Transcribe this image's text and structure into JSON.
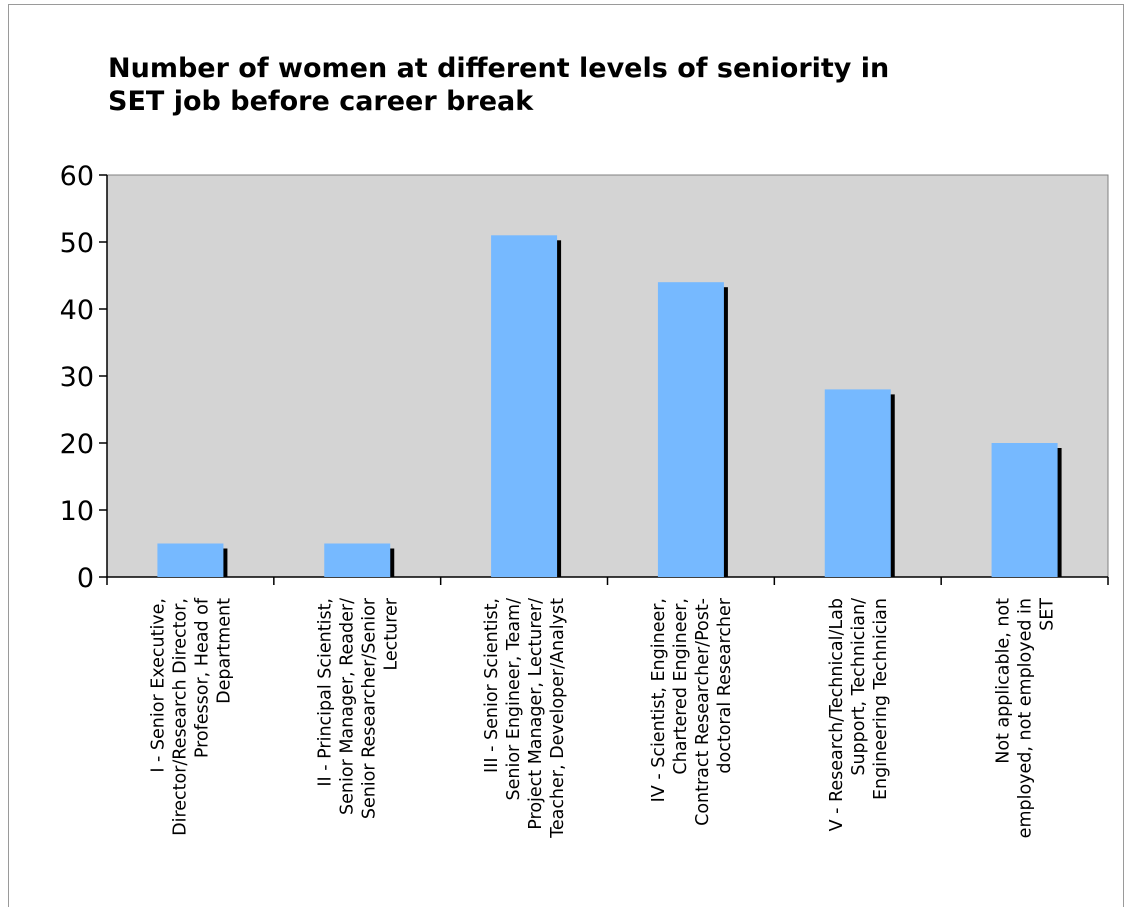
{
  "chart_data": {
    "type": "bar",
    "title": "Number of women at different levels of seniority in SET job before career break",
    "title_lines": [
      "Number of women at different levels of seniority in",
      "SET job before career break"
    ],
    "xlabel": "",
    "ylabel": "",
    "ylim": [
      0,
      60
    ],
    "yticks": [
      "0",
      "10",
      "20",
      "30",
      "40",
      "50",
      "60"
    ],
    "grid": false,
    "legend": "none",
    "categories": [
      "I - Senior Executive, Director/Research Director, Professor, Head of Department",
      "II - Principal Scientist, Senior Manager, Reader/ Senior Researcher/Senior Lecturer",
      "III - Senior Scientist, Senior Engineer, Team/ Project Manager, Lecturer/ Teacher, Developer/Analyst",
      "IV - Scientist, Engineer, Chartered Engineer, Contract Researcher/Post-doctoral Researcher",
      "V - Research/Technical/Lab Support, Technician/ Engineering Technician",
      "Not applicable, not employed, not employed in SET"
    ],
    "category_lines": [
      [
        "I - Senior Executive,",
        "Director/Research Director,",
        "Professor, Head of",
        "Department"
      ],
      [
        "II - Principal Scientist,",
        "Senior Manager, Reader/",
        "Senior Researcher/Senior",
        "Lecturer"
      ],
      [
        "III - Senior Scientist,",
        "Senior Engineer, Team/",
        "Project Manager, Lecturer/",
        "Teacher, Developer/Analyst"
      ],
      [
        "IV - Scientist, Engineer,",
        "Chartered Engineer,",
        "Contract Researcher/Post-",
        "doctoral Researcher"
      ],
      [
        "V - Research/Technical/Lab",
        "Support, Technician/",
        "Engineering Technician"
      ],
      [
        "Not applicable, not",
        "employed, not employed in",
        "SET"
      ]
    ],
    "values": [
      5,
      5,
      51,
      44,
      28,
      20
    ],
    "colors": {
      "plot_bg": "#d4d4d4",
      "bar": "#76b9ff",
      "shadow": "#000000",
      "axis": "#000000"
    }
  }
}
